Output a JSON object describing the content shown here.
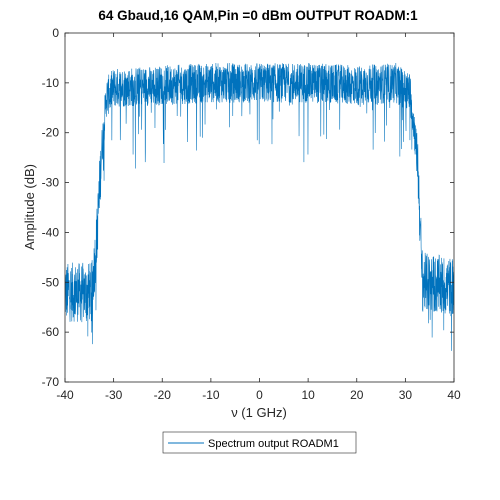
{
  "chart_data": {
    "type": "line",
    "title": "64 Gbaud,16 QAM,Pin =0 dBm OUTPUT ROADM:1",
    "xlabel": "ν (1 GHz)",
    "ylabel": "Amplitude (dB)",
    "xlim": [
      -40,
      40
    ],
    "ylim": [
      -70,
      0
    ],
    "xticks": [
      -40,
      -30,
      -20,
      -10,
      0,
      10,
      20,
      30,
      40
    ],
    "yticks": [
      0,
      -10,
      -20,
      -30,
      -40,
      -50,
      -60,
      -70
    ],
    "grid": false,
    "legend_position": "bottom-center",
    "series": [
      {
        "name": "Spectrum output ROADM1",
        "color": "#0072BD",
        "profile": {
          "x": [
            -40,
            -34.5,
            -33.5,
            -32.5,
            -31.5,
            -30,
            -20,
            -10,
            0,
            10,
            20,
            28,
            31,
            32.5,
            33.5,
            40
          ],
          "y_mean": [
            -52,
            -52,
            -42,
            -24,
            -13,
            -11,
            -10.5,
            -10,
            -10,
            -10,
            -10.5,
            -10,
            -12,
            -25,
            -50,
            -51
          ]
        },
        "spread_in_band_db": 8,
        "spread_out_band_db": 12
      }
    ]
  }
}
